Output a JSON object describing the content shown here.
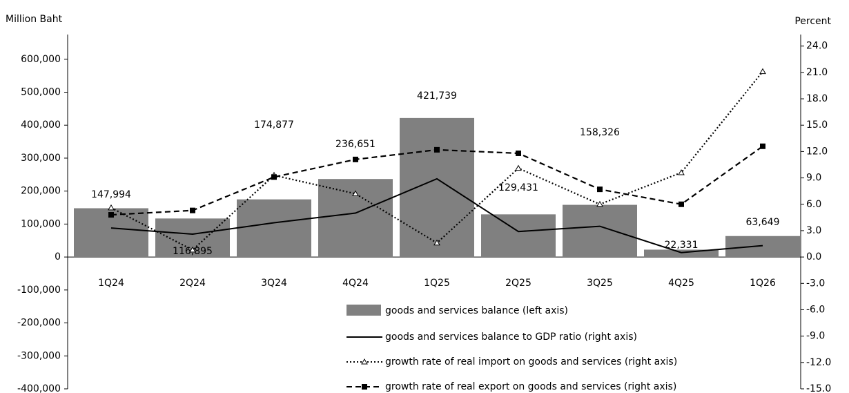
{
  "chart_data": {
    "type": "bar",
    "y_label": "Million Baht",
    "y2_label": "Percent",
    "categories": [
      "1Q24",
      "2Q24",
      "3Q24",
      "4Q24",
      "1Q25",
      "2Q25",
      "3Q25",
      "4Q25",
      "1Q26"
    ],
    "series": [
      {
        "name": "goods and services balance (left axis)",
        "type": "bar",
        "axis": "y",
        "color": "#808080",
        "values": [
          147994,
          116895,
          174877,
          236651,
          421739,
          129431,
          158326,
          22331,
          63649
        ],
        "value_labels": [
          "147,994",
          "116,895",
          "174,877",
          "236,651",
          "421,739",
          "129,431",
          "158,326",
          "22,331",
          "63,649"
        ]
      },
      {
        "name": "goods and services balance to GDP ratio (right axis)",
        "type": "line",
        "axis": "y2",
        "color": "#000000",
        "dash": "solid",
        "marker": "none",
        "values": [
          3.3,
          2.6,
          3.9,
          5.0,
          8.9,
          2.9,
          3.5,
          0.5,
          1.3
        ]
      },
      {
        "name": "growth rate of real import on goods and services (right axis)",
        "type": "line",
        "axis": "y2",
        "color": "#000000",
        "dash": "dotted",
        "marker": "triangle",
        "values": [
          5.6,
          0.8,
          9.3,
          7.2,
          1.6,
          10.1,
          6.0,
          9.6,
          21.1
        ]
      },
      {
        "name": "growth rate of real export on goods and services (right axis)",
        "type": "line",
        "axis": "y2",
        "color": "#000000",
        "dash": "dashed",
        "marker": "square",
        "values": [
          4.8,
          5.3,
          9.1,
          11.1,
          12.2,
          11.8,
          7.7,
          6.0,
          12.6
        ]
      }
    ],
    "ylim": [
      -400000,
      675000
    ],
    "yticks": [
      {
        "value": -400000,
        "label": "-400,000"
      },
      {
        "value": -300000,
        "label": "-300,000"
      },
      {
        "value": -200000,
        "label": "-200,000"
      },
      {
        "value": -100000,
        "label": "-100,000"
      },
      0,
      {
        "value": 100000,
        "label": "100,000"
      },
      {
        "value": 200000,
        "label": "200,000"
      },
      {
        "value": 300000,
        "label": "300,000"
      },
      {
        "value": 400000,
        "label": "400,000"
      },
      {
        "value": 500000,
        "label": "500,000"
      },
      {
        "value": 600000,
        "label": "600,000"
      }
    ],
    "y2lim": [
      -15,
      25.3125
    ],
    "y2ticks": [
      {
        "value": -15,
        "label": "-15.0"
      },
      {
        "value": -12,
        "label": "-12.0"
      },
      {
        "value": -9,
        "label": "-9.0"
      },
      {
        "value": -6,
        "label": "-6.0"
      },
      {
        "value": -3,
        "label": "-3.0"
      },
      {
        "value": 0,
        "label": "0.0"
      },
      {
        "value": 3,
        "label": "3.0"
      },
      {
        "value": 6,
        "label": "6.0"
      },
      {
        "value": 9,
        "label": "9.0"
      },
      {
        "value": 12,
        "label": "12.0"
      },
      {
        "value": 15,
        "label": "15.0"
      },
      {
        "value": 18,
        "label": "18.0"
      },
      {
        "value": 21,
        "label": "21.0"
      },
      {
        "value": 24,
        "label": "24.0"
      }
    ],
    "grid": false
  }
}
